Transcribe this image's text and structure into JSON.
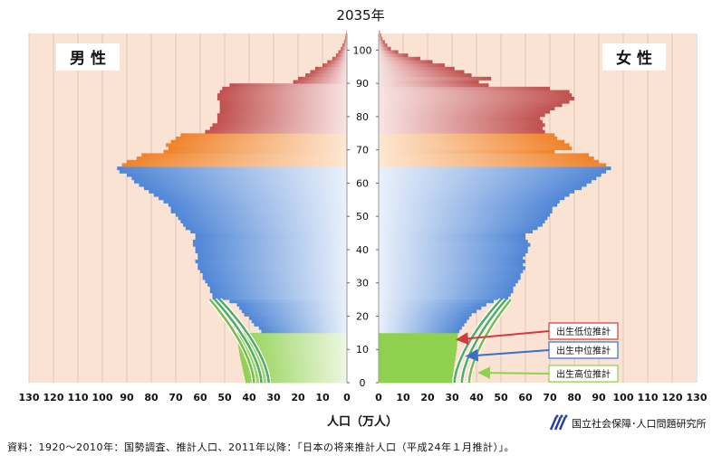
{
  "chart_data": {
    "type": "population-pyramid",
    "title": "2035年",
    "xlabel": "人口（万人）",
    "male_label": "男 性",
    "female_label": "女 性",
    "x_ticks": [
      130,
      120,
      110,
      100,
      90,
      80,
      70,
      60,
      50,
      40,
      30,
      20,
      10,
      0
    ],
    "x_ticks_right": [
      0,
      10,
      20,
      30,
      40,
      50,
      60,
      70,
      80,
      90,
      100,
      110,
      120,
      130
    ],
    "y_ticks": [
      0,
      10,
      20,
      30,
      40,
      50,
      60,
      70,
      80,
      90,
      100
    ],
    "xlim": [
      0,
      130
    ],
    "ylim": [
      0,
      105
    ],
    "age_bands": {
      "children": [
        0,
        14
      ],
      "working": [
        15,
        64
      ],
      "early_elderly": [
        65,
        74
      ],
      "late_elderly": [
        75,
        105
      ]
    },
    "colors": {
      "background": "#fbe3d4",
      "grid": "#d8c9bd",
      "children": "#8fd14f",
      "working": "#4f86d6",
      "early_elderly": "#f0822a",
      "late_elderly": "#c0504d",
      "proj_low": "#d23b3b",
      "proj_mid": "#3b6fc4",
      "proj_high": "#8fd14f"
    },
    "male": [
      {
        "age": 0,
        "value": 41.5
      },
      {
        "age": 1,
        "value": 41.8
      },
      {
        "age": 2,
        "value": 42.1
      },
      {
        "age": 3,
        "value": 42.4
      },
      {
        "age": 4,
        "value": 42.7
      },
      {
        "age": 5,
        "value": 43.0
      },
      {
        "age": 6,
        "value": 43.3
      },
      {
        "age": 7,
        "value": 43.6
      },
      {
        "age": 8,
        "value": 43.9
      },
      {
        "age": 9,
        "value": 44.1
      },
      {
        "age": 10,
        "value": 44.3
      },
      {
        "age": 11,
        "value": 44.5
      },
      {
        "age": 12,
        "value": 44.7
      },
      {
        "age": 13,
        "value": 44.9
      },
      {
        "age": 14,
        "value": 45.1
      },
      {
        "age": 15,
        "value": 35
      },
      {
        "age": 16,
        "value": 36
      },
      {
        "age": 17,
        "value": 38
      },
      {
        "age": 18,
        "value": 39
      },
      {
        "age": 19,
        "value": 40
      },
      {
        "age": 20,
        "value": 42
      },
      {
        "age": 21,
        "value": 43
      },
      {
        "age": 22,
        "value": 44
      },
      {
        "age": 23,
        "value": 45
      },
      {
        "age": 24,
        "value": 48
      },
      {
        "age": 25,
        "value": 55
      },
      {
        "age": 26,
        "value": 55
      },
      {
        "age": 27,
        "value": 56
      },
      {
        "age": 28,
        "value": 56
      },
      {
        "age": 29,
        "value": 57
      },
      {
        "age": 30,
        "value": 58
      },
      {
        "age": 31,
        "value": 59
      },
      {
        "age": 32,
        "value": 59
      },
      {
        "age": 33,
        "value": 60
      },
      {
        "age": 34,
        "value": 61
      },
      {
        "age": 35,
        "value": 61
      },
      {
        "age": 36,
        "value": 62
      },
      {
        "age": 37,
        "value": 61
      },
      {
        "age": 38,
        "value": 61
      },
      {
        "age": 39,
        "value": 62
      },
      {
        "age": 40,
        "value": 62
      },
      {
        "age": 41,
        "value": 63
      },
      {
        "age": 42,
        "value": 63
      },
      {
        "age": 43,
        "value": 62
      },
      {
        "age": 44,
        "value": 62
      },
      {
        "age": 45,
        "value": 64
      },
      {
        "age": 46,
        "value": 66
      },
      {
        "age": 47,
        "value": 67
      },
      {
        "age": 48,
        "value": 68
      },
      {
        "age": 49,
        "value": 69
      },
      {
        "age": 50,
        "value": 70
      },
      {
        "age": 51,
        "value": 72
      },
      {
        "age": 52,
        "value": 72
      },
      {
        "age": 53,
        "value": 73
      },
      {
        "age": 54,
        "value": 75
      },
      {
        "age": 55,
        "value": 77
      },
      {
        "age": 56,
        "value": 79
      },
      {
        "age": 57,
        "value": 81
      },
      {
        "age": 58,
        "value": 83
      },
      {
        "age": 59,
        "value": 85
      },
      {
        "age": 60,
        "value": 87
      },
      {
        "age": 61,
        "value": 88
      },
      {
        "age": 62,
        "value": 90
      },
      {
        "age": 63,
        "value": 93
      },
      {
        "age": 64,
        "value": 94
      },
      {
        "age": 65,
        "value": 92
      },
      {
        "age": 66,
        "value": 90
      },
      {
        "age": 67,
        "value": 86
      },
      {
        "age": 68,
        "value": 84
      },
      {
        "age": 69,
        "value": 75
      },
      {
        "age": 70,
        "value": 73
      },
      {
        "age": 71,
        "value": 74
      },
      {
        "age": 72,
        "value": 72
      },
      {
        "age": 73,
        "value": 70
      },
      {
        "age": 74,
        "value": 68
      },
      {
        "age": 75,
        "value": 58
      },
      {
        "age": 76,
        "value": 56
      },
      {
        "age": 77,
        "value": 55
      },
      {
        "age": 78,
        "value": 53
      },
      {
        "age": 79,
        "value": 53
      },
      {
        "age": 80,
        "value": 53
      },
      {
        "age": 81,
        "value": 52
      },
      {
        "age": 82,
        "value": 52
      },
      {
        "age": 83,
        "value": 52
      },
      {
        "age": 84,
        "value": 52
      },
      {
        "age": 85,
        "value": 53
      },
      {
        "age": 86,
        "value": 53
      },
      {
        "age": 87,
        "value": 52
      },
      {
        "age": 88,
        "value": 51
      },
      {
        "age": 89,
        "value": 48
      },
      {
        "age": 90,
        "value": 22
      },
      {
        "age": 91,
        "value": 20
      },
      {
        "age": 92,
        "value": 17
      },
      {
        "age": 93,
        "value": 15
      },
      {
        "age": 94,
        "value": 13
      },
      {
        "age": 95,
        "value": 10
      },
      {
        "age": 96,
        "value": 8
      },
      {
        "age": 97,
        "value": 6
      },
      {
        "age": 98,
        "value": 4.5
      },
      {
        "age": 99,
        "value": 3.5
      },
      {
        "age": 100,
        "value": 2.5
      },
      {
        "age": 101,
        "value": 1.8
      },
      {
        "age": 102,
        "value": 1.2
      },
      {
        "age": 103,
        "value": 0.8
      },
      {
        "age": 104,
        "value": 0.5
      },
      {
        "age": 105,
        "value": 0.3
      }
    ],
    "female": [
      {
        "age": 0,
        "value": 30
      },
      {
        "age": 1,
        "value": 30.2
      },
      {
        "age": 2,
        "value": 30.4
      },
      {
        "age": 3,
        "value": 30.6
      },
      {
        "age": 4,
        "value": 30.8
      },
      {
        "age": 5,
        "value": 31
      },
      {
        "age": 6,
        "value": 31.2
      },
      {
        "age": 7,
        "value": 31.4
      },
      {
        "age": 8,
        "value": 31.6
      },
      {
        "age": 9,
        "value": 31.8
      },
      {
        "age": 10,
        "value": 32
      },
      {
        "age": 11,
        "value": 32.1
      },
      {
        "age": 12,
        "value": 32.2
      },
      {
        "age": 13,
        "value": 32.3
      },
      {
        "age": 14,
        "value": 32.4
      },
      {
        "age": 15,
        "value": 33
      },
      {
        "age": 16,
        "value": 34
      },
      {
        "age": 17,
        "value": 35
      },
      {
        "age": 18,
        "value": 36
      },
      {
        "age": 19,
        "value": 37
      },
      {
        "age": 20,
        "value": 38
      },
      {
        "age": 21,
        "value": 40
      },
      {
        "age": 22,
        "value": 42
      },
      {
        "age": 23,
        "value": 44
      },
      {
        "age": 24,
        "value": 47
      },
      {
        "age": 25,
        "value": 53
      },
      {
        "age": 26,
        "value": 54
      },
      {
        "age": 27,
        "value": 55
      },
      {
        "age": 28,
        "value": 55
      },
      {
        "age": 29,
        "value": 56
      },
      {
        "age": 30,
        "value": 57
      },
      {
        "age": 31,
        "value": 58
      },
      {
        "age": 32,
        "value": 58
      },
      {
        "age": 33,
        "value": 59
      },
      {
        "age": 34,
        "value": 60
      },
      {
        "age": 35,
        "value": 59
      },
      {
        "age": 36,
        "value": 60
      },
      {
        "age": 37,
        "value": 59
      },
      {
        "age": 38,
        "value": 60
      },
      {
        "age": 39,
        "value": 61
      },
      {
        "age": 40,
        "value": 61
      },
      {
        "age": 41,
        "value": 62
      },
      {
        "age": 42,
        "value": 61
      },
      {
        "age": 43,
        "value": 60
      },
      {
        "age": 44,
        "value": 60
      },
      {
        "age": 45,
        "value": 63
      },
      {
        "age": 46,
        "value": 65
      },
      {
        "age": 47,
        "value": 67
      },
      {
        "age": 48,
        "value": 68
      },
      {
        "age": 49,
        "value": 69
      },
      {
        "age": 50,
        "value": 70
      },
      {
        "age": 51,
        "value": 71
      },
      {
        "age": 52,
        "value": 71
      },
      {
        "age": 53,
        "value": 73
      },
      {
        "age": 54,
        "value": 74
      },
      {
        "age": 55,
        "value": 76
      },
      {
        "age": 56,
        "value": 78
      },
      {
        "age": 57,
        "value": 80
      },
      {
        "age": 58,
        "value": 83
      },
      {
        "age": 59,
        "value": 85
      },
      {
        "age": 60,
        "value": 87
      },
      {
        "age": 61,
        "value": 89
      },
      {
        "age": 62,
        "value": 91
      },
      {
        "age": 63,
        "value": 93
      },
      {
        "age": 64,
        "value": 95
      },
      {
        "age": 65,
        "value": 93
      },
      {
        "age": 66,
        "value": 90
      },
      {
        "age": 67,
        "value": 88
      },
      {
        "age": 68,
        "value": 86
      },
      {
        "age": 69,
        "value": 72
      },
      {
        "age": 70,
        "value": 79
      },
      {
        "age": 71,
        "value": 78
      },
      {
        "age": 72,
        "value": 76
      },
      {
        "age": 73,
        "value": 73
      },
      {
        "age": 74,
        "value": 72
      },
      {
        "age": 75,
        "value": 68
      },
      {
        "age": 76,
        "value": 67
      },
      {
        "age": 77,
        "value": 68
      },
      {
        "age": 78,
        "value": 67
      },
      {
        "age": 79,
        "value": 66
      },
      {
        "age": 80,
        "value": 68
      },
      {
        "age": 81,
        "value": 70
      },
      {
        "age": 82,
        "value": 72
      },
      {
        "age": 83,
        "value": 75
      },
      {
        "age": 84,
        "value": 78
      },
      {
        "age": 85,
        "value": 80
      },
      {
        "age": 86,
        "value": 79
      },
      {
        "age": 87,
        "value": 78
      },
      {
        "age": 88,
        "value": 70
      },
      {
        "age": 89,
        "value": 45
      },
      {
        "age": 90,
        "value": 41
      },
      {
        "age": 91,
        "value": 46
      },
      {
        "age": 92,
        "value": 38
      },
      {
        "age": 93,
        "value": 35
      },
      {
        "age": 94,
        "value": 31
      },
      {
        "age": 95,
        "value": 27
      },
      {
        "age": 96,
        "value": 22
      },
      {
        "age": 97,
        "value": 17
      },
      {
        "age": 98,
        "value": 12
      },
      {
        "age": 99,
        "value": 8
      },
      {
        "age": 100,
        "value": 5
      },
      {
        "age": 101,
        "value": 3.5
      },
      {
        "age": 102,
        "value": 2.5
      },
      {
        "age": 103,
        "value": 1.5
      },
      {
        "age": 104,
        "value": 1
      },
      {
        "age": 105,
        "value": 0.5
      }
    ],
    "projections": {
      "male": {
        "low": {
          "bottom": 32,
          "top": 52
        },
        "mid": {
          "bottom": 35,
          "top": 54
        },
        "high": {
          "bottom": 38,
          "top": 56
        }
      },
      "female": {
        "low": {
          "bottom": 31,
          "top": 50
        },
        "mid": {
          "bottom": 34,
          "top": 52
        },
        "high": {
          "bottom": 37,
          "top": 54
        }
      }
    },
    "annotations": [
      {
        "label": "出生低位推計",
        "age": 13,
        "value": 31,
        "color": "#d23b3b"
      },
      {
        "label": "出生中位推計",
        "age": 8,
        "value": 35,
        "color": "#3b6fc4"
      },
      {
        "label": "出生高位推計",
        "age": 3,
        "value": 40,
        "color": "#8fd14f"
      }
    ]
  },
  "source_note": "資料：1920〜2010年：国勢調査、推計人口、2011年以降：「日本の将来推計人口（平成24年１月推計）」。",
  "org_name": "国立社会保障･人口問題研究所"
}
